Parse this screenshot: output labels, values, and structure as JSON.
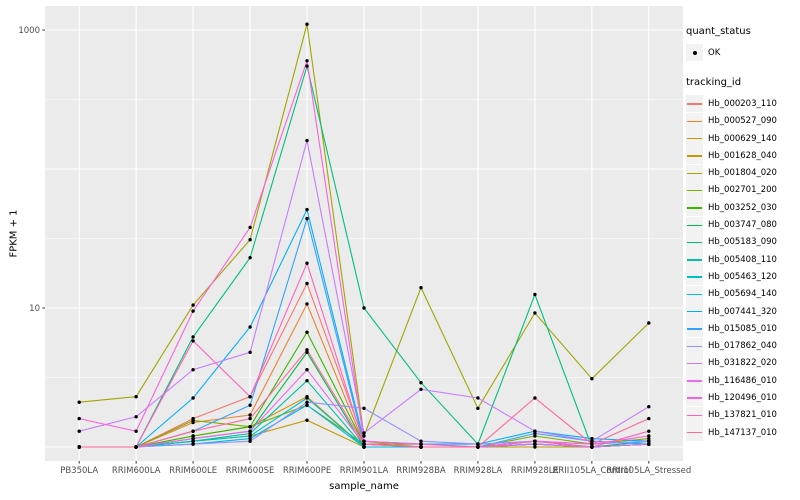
{
  "panel": {
    "background": "#EBEBEB",
    "gridline_color": "#FFFFFF",
    "tick_color": "#333333",
    "tick_label_color": "#4D4D4D"
  },
  "legend": {
    "quant_status": {
      "title": "quant_status",
      "items": [
        {
          "label": "OK",
          "symbol": "point"
        }
      ]
    },
    "tracking_id": {
      "title": "tracking_id"
    }
  },
  "chart_data": {
    "type": "line",
    "title": "",
    "xlabel": "sample_name",
    "ylabel": "FPKM + 1",
    "y_scale": "log10",
    "y_tick_labels": [
      "1000",
      "10"
    ],
    "y_ticks": [
      1000,
      10
    ],
    "y_major_gridlines": [
      1,
      10,
      100,
      1000
    ],
    "y_minor_gridlines": [
      3.162,
      31.62,
      316.2
    ],
    "ylim": [
      0.79,
      1480
    ],
    "grid": true,
    "legend_position": "right",
    "categories": [
      "PB350LA",
      "RRIM600LA",
      "RRIM600LE",
      "RRIM600SE",
      "RRIM600PE",
      "RRIM901LA",
      "RRIM928BA",
      "RRIM928LA",
      "RRIM928LE",
      "RRII105LA_Control",
      "RRII105LA_Stressed"
    ],
    "series": [
      {
        "name": "Hb_000203_110",
        "color": "#F8766D",
        "values": [
          1,
          1,
          1.6,
          2.3,
          15,
          1.1,
          1,
          1,
          1.1,
          1,
          1.05
        ]
      },
      {
        "name": "Hb_000527_090",
        "color": "#EA8331",
        "values": [
          1,
          1,
          1.5,
          1.7,
          10.7,
          1.05,
          1,
          1,
          1.05,
          1,
          1.1
        ]
      },
      {
        "name": "Hb_000629_140",
        "color": "#D89000",
        "values": [
          1,
          1,
          1.2,
          1.4,
          2.3,
          1,
          1,
          1,
          1.05,
          1,
          1.05
        ]
      },
      {
        "name": "Hb_001628_040",
        "color": "#C09B00",
        "values": [
          1,
          1,
          1.1,
          1.2,
          1.56,
          1,
          1,
          1,
          1,
          1,
          1.05
        ]
      },
      {
        "name": "Hb_001804_020",
        "color": "#A3A500",
        "values": [
          2.1,
          2.3,
          10.5,
          31,
          1100,
          1.2,
          14,
          1.9,
          9.2,
          3.1,
          7.8
        ]
      },
      {
        "name": "Hb_002701_200",
        "color": "#7CAE00",
        "values": [
          1,
          1,
          1.55,
          1.4,
          2.0,
          1.05,
          1.05,
          1,
          1.2,
          1.05,
          1.15
        ]
      },
      {
        "name": "Hb_003252_030",
        "color": "#39B600",
        "values": [
          1,
          1,
          1.2,
          1.4,
          6.7,
          1.05,
          1,
          1,
          1.1,
          1,
          1.05
        ]
      },
      {
        "name": "Hb_003747_080",
        "color": "#00BB4E",
        "values": [
          1,
          1,
          1.15,
          1.3,
          4.8,
          1,
          1,
          1,
          1.05,
          1,
          1.05
        ]
      },
      {
        "name": "Hb_005183_090",
        "color": "#00BF7D",
        "values": [
          1,
          1,
          6.2,
          23,
          550,
          10,
          2.9,
          1.05,
          12.5,
          1,
          1.1
        ]
      },
      {
        "name": "Hb_005408_110",
        "color": "#00C1A3",
        "values": [
          1,
          1,
          1.1,
          1.25,
          3.0,
          1,
          1,
          1,
          1.05,
          1,
          1.05
        ]
      },
      {
        "name": "Hb_005463_120",
        "color": "#00BFC4",
        "values": [
          1,
          1,
          1.1,
          1.2,
          2.25,
          1,
          1,
          1,
          1.05,
          1,
          1.05
        ]
      },
      {
        "name": "Hb_005694_140",
        "color": "#00BAE0",
        "values": [
          1,
          1,
          1.05,
          1.15,
          2.0,
          1,
          1,
          1,
          1.05,
          1,
          1.05
        ]
      },
      {
        "name": "Hb_007441_320",
        "color": "#00B0F6",
        "values": [
          1,
          1,
          2.25,
          7.3,
          51,
          1.1,
          1.05,
          1.05,
          1.3,
          1.15,
          1.1
        ]
      },
      {
        "name": "Hb_015085_010",
        "color": "#35A2FF",
        "values": [
          1,
          1,
          1.3,
          2.0,
          44,
          1.05,
          1,
          1,
          1.25,
          1.1,
          1.05
        ]
      },
      {
        "name": "Hb_017862_040",
        "color": "#9590FF",
        "values": [
          1,
          1,
          1.05,
          1.1,
          2.1,
          1.9,
          1.1,
          1.05,
          1.1,
          1.05,
          1.1
        ]
      },
      {
        "name": "Hb_031822_020",
        "color": "#C77CFF",
        "values": [
          1.3,
          1.65,
          3.6,
          4.8,
          160,
          1.26,
          2.6,
          2.25,
          1.3,
          1.1,
          1.95
        ]
      },
      {
        "name": "Hb_116486_010",
        "color": "#E76BF3",
        "values": [
          1,
          1,
          1.15,
          1.3,
          3.6,
          1.05,
          1,
          1,
          1.05,
          1,
          1.05
        ]
      },
      {
        "name": "Hb_120496_010",
        "color": "#FA62DB",
        "values": [
          1.6,
          1.3,
          9.5,
          38,
          600,
          1.1,
          1.05,
          1,
          1.1,
          1.05,
          1.2
        ]
      },
      {
        "name": "Hb_137821_010",
        "color": "#FF62BC",
        "values": [
          1,
          1,
          5.8,
          2.3,
          21,
          1.05,
          1,
          1,
          1.1,
          1,
          1.3
        ]
      },
      {
        "name": "Hb_147137_010",
        "color": "#FF6A98",
        "values": [
          1,
          1,
          1.3,
          1.6,
          5,
          1.05,
          1,
          1,
          2.25,
          1.05,
          1.6
        ]
      }
    ]
  }
}
